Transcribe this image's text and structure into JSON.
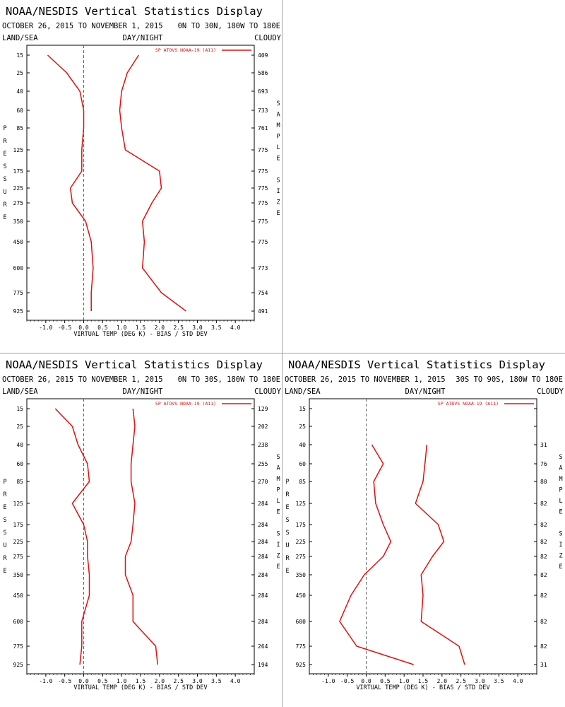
{
  "display_title": "NOAA/NESDIS Vertical Statistics Display",
  "date_range": "OCTOBER 26, 2015 TO NOVEMBER 1, 2015",
  "labels": {
    "land_sea": "LAND/SEA",
    "day_night": "DAY/NIGHT",
    "cloudy": "CLOUDY",
    "pressure_vertical": "PRESSURE",
    "sample_size_vertical": "SAMPLE SIZE",
    "legend": "SP ATOVS NOAA-19 (A11)",
    "x_axis": "VIRTUAL TEMP (DEG K) - BIAS / STD DEV"
  },
  "colors": {
    "series": "#e01010",
    "zero_line": "#606060",
    "axis": "#000000",
    "divider": "#a0a0a0"
  },
  "chart_data": [
    {
      "type": "line",
      "region": "0N TO 30N, 180W TO 180E",
      "pressure_levels": [
        15,
        25,
        40,
        60,
        85,
        125,
        175,
        225,
        275,
        350,
        450,
        600,
        775,
        925
      ],
      "x_ticks": [
        -1.0,
        -0.5,
        0.0,
        0.5,
        1.0,
        1.5,
        2.0,
        2.5,
        3.0,
        3.5,
        4.0
      ],
      "xlim": [
        -1.5,
        4.5
      ],
      "series": [
        {
          "name": "BIAS",
          "values": [
            -0.95,
            -0.45,
            -0.1,
            0.0,
            0.0,
            -0.05,
            -0.05,
            -0.35,
            -0.3,
            0.05,
            0.2,
            0.25,
            0.2,
            0.2
          ]
        },
        {
          "name": "STD DEV",
          "values": [
            1.45,
            1.15,
            1.0,
            0.95,
            1.0,
            1.1,
            2.0,
            2.05,
            1.8,
            1.55,
            1.6,
            1.55,
            2.05,
            2.7
          ]
        }
      ],
      "sample_sizes": [
        "409",
        "586",
        "693",
        "733",
        "761",
        "775",
        "775",
        "775",
        "775",
        "775",
        "775",
        "773",
        "754",
        "491"
      ]
    },
    {
      "type": "line",
      "region": "0N TO 30S, 180W TO 180E",
      "pressure_levels": [
        15,
        25,
        40,
        60,
        85,
        125,
        175,
        225,
        275,
        350,
        450,
        600,
        775,
        925
      ],
      "x_ticks": [
        -1.0,
        -0.5,
        0.0,
        0.5,
        1.0,
        1.5,
        2.0,
        2.5,
        3.0,
        3.5,
        4.0
      ],
      "xlim": [
        -1.5,
        4.5
      ],
      "series": [
        {
          "name": "BIAS",
          "values": [
            -0.75,
            -0.3,
            -0.15,
            0.1,
            0.15,
            -0.3,
            0.0,
            0.1,
            0.1,
            0.15,
            0.15,
            -0.05,
            -0.05,
            -0.1
          ]
        },
        {
          "name": "STD DEV",
          "values": [
            1.3,
            1.35,
            1.3,
            1.25,
            1.25,
            1.35,
            1.3,
            1.25,
            1.1,
            1.1,
            1.3,
            1.3,
            1.9,
            1.95
          ]
        }
      ],
      "sample_sizes": [
        "129",
        "202",
        "238",
        "255",
        "270",
        "284",
        "284",
        "284",
        "284",
        "284",
        "284",
        "284",
        "264",
        "194"
      ]
    },
    {
      "type": "line",
      "region": "30S TO 90S, 180W TO 180E",
      "pressure_levels": [
        15,
        25,
        40,
        60,
        85,
        125,
        175,
        225,
        275,
        350,
        450,
        600,
        775,
        925
      ],
      "x_ticks": [
        -1.0,
        -0.5,
        0.0,
        0.5,
        1.0,
        1.5,
        2.0,
        2.5,
        3.0,
        3.5,
        4.0
      ],
      "xlim": [
        -1.5,
        4.5
      ],
      "data_levels": [
        40,
        60,
        85,
        125,
        175,
        225,
        275,
        350,
        450,
        600,
        775,
        925
      ],
      "series": [
        {
          "name": "BIAS",
          "values": [
            0.15,
            0.45,
            0.2,
            0.25,
            0.45,
            0.65,
            0.45,
            -0.05,
            -0.4,
            -0.7,
            -0.25,
            1.25
          ]
        },
        {
          "name": "STD DEV",
          "values": [
            1.6,
            1.55,
            1.5,
            1.3,
            1.9,
            2.05,
            1.75,
            1.45,
            1.5,
            1.45,
            2.45,
            2.6
          ]
        }
      ],
      "sample_sizes": [
        "31",
        "76",
        "80",
        "82",
        "82",
        "82",
        "82",
        "82",
        "82",
        "82",
        "82",
        "31"
      ]
    }
  ]
}
